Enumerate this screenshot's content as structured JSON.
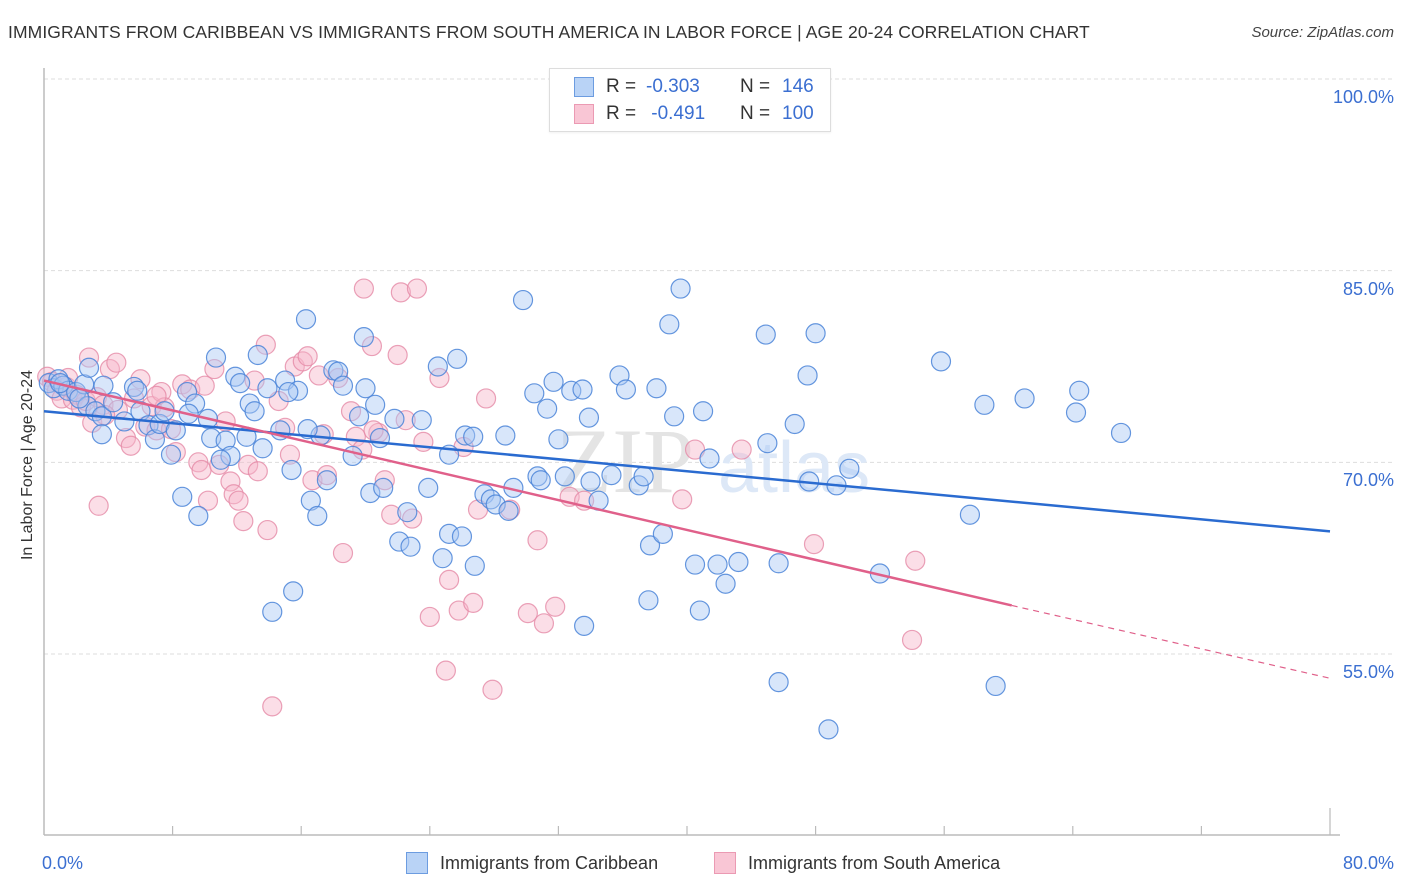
{
  "title": "IMMIGRANTS FROM CARIBBEAN VS IMMIGRANTS FROM SOUTH AMERICA IN LABOR FORCE | AGE 20-24 CORRELATION CHART",
  "source": "Source: ZipAtlas.com",
  "watermark": {
    "zip": "ZIP",
    "atlas": "atlas"
  },
  "legend_top": [
    {
      "r_label": "R =",
      "r_value": "-0.303",
      "n_label": "N =",
      "n_value": "146"
    },
    {
      "r_label": "R =",
      "r_value": " -0.491",
      "n_label": "N =",
      "n_value": "100"
    }
  ],
  "colors": {
    "caribbean_fill": "#a9c8f3",
    "caribbean_stroke": "#4a84d8",
    "caribbean_line": "#2a6bd0",
    "southamerica_fill": "#f7b6c9",
    "southamerica_stroke": "#e58aa6",
    "southamerica_line": "#e0608a",
    "axis_label": "#3b6fd1",
    "grid": "#dddddd"
  },
  "chart_data": {
    "type": "scatter",
    "title": "IMMIGRANTS FROM CARIBBEAN VS IMMIGRANTS FROM SOUTH AMERICA IN LABOR FORCE | AGE 20-24 CORRELATION CHART",
    "xlabel": "",
    "ylabel": "In Labor Force | Age 20-24",
    "xlim": [
      0,
      80
    ],
    "ylim": [
      40.8,
      100
    ],
    "x_tick_labels": [
      "0.0%",
      "80.0%"
    ],
    "x_ticks": [
      0,
      8,
      16,
      24,
      32,
      40,
      48,
      56,
      64,
      72,
      80
    ],
    "y_ticks": [
      100,
      85,
      70,
      55
    ],
    "y_tick_labels": [
      "100.0%",
      "85.0%",
      "70.0%",
      "55.0%"
    ],
    "grid": true,
    "legend_position": "bottom-center",
    "series": [
      {
        "name": "Immigrants from Caribbean",
        "R": -0.303,
        "N": 146,
        "trend": {
          "x": [
            0,
            80
          ],
          "y": [
            74.0,
            64.6
          ]
        },
        "points": [
          [
            0.3,
            76.2
          ],
          [
            0.6,
            75.8
          ],
          [
            0.9,
            76.5
          ],
          [
            1.2,
            76.0
          ],
          [
            1.5,
            75.6
          ],
          [
            2.0,
            75.5
          ],
          [
            2.5,
            76.1
          ],
          [
            2.7,
            74.4
          ],
          [
            2.8,
            77.4
          ],
          [
            3.2,
            74.0
          ],
          [
            3.6,
            73.6
          ],
          [
            3.7,
            76.0
          ],
          [
            3.6,
            72.2
          ],
          [
            4.3,
            74.7
          ],
          [
            5.0,
            73.2
          ],
          [
            5.6,
            75.9
          ],
          [
            6.0,
            74.0
          ],
          [
            6.5,
            72.9
          ],
          [
            6.9,
            71.8
          ],
          [
            7.2,
            73.0
          ],
          [
            7.5,
            74.0
          ],
          [
            7.9,
            70.6
          ],
          [
            8.6,
            67.3
          ],
          [
            8.9,
            75.5
          ],
          [
            9.4,
            74.6
          ],
          [
            9.6,
            65.8
          ],
          [
            10.2,
            73.4
          ],
          [
            10.4,
            71.9
          ],
          [
            10.7,
            78.2
          ],
          [
            11.3,
            71.7
          ],
          [
            11.6,
            70.5
          ],
          [
            11.9,
            76.7
          ],
          [
            12.2,
            76.2
          ],
          [
            12.6,
            72.0
          ],
          [
            12.8,
            74.6
          ],
          [
            13.1,
            74.0
          ],
          [
            13.3,
            78.4
          ],
          [
            13.6,
            71.1
          ],
          [
            13.9,
            75.8
          ],
          [
            14.2,
            58.3
          ],
          [
            14.7,
            72.5
          ],
          [
            15.0,
            76.4
          ],
          [
            15.4,
            69.4
          ],
          [
            15.5,
            59.9
          ],
          [
            15.8,
            75.6
          ],
          [
            16.3,
            81.2
          ],
          [
            16.6,
            67.0
          ],
          [
            17.0,
            65.8
          ],
          [
            17.2,
            72.1
          ],
          [
            17.6,
            68.6
          ],
          [
            18.0,
            77.2
          ],
          [
            18.3,
            77.1
          ],
          [
            18.6,
            76.0
          ],
          [
            19.2,
            70.5
          ],
          [
            19.6,
            73.6
          ],
          [
            19.9,
            79.8
          ],
          [
            20.0,
            75.8
          ],
          [
            20.3,
            67.6
          ],
          [
            20.6,
            74.5
          ],
          [
            20.9,
            71.9
          ],
          [
            21.1,
            68.0
          ],
          [
            21.8,
            73.4
          ],
          [
            22.1,
            63.8
          ],
          [
            22.6,
            66.1
          ],
          [
            22.8,
            63.4
          ],
          [
            23.5,
            73.3
          ],
          [
            23.9,
            68.0
          ],
          [
            24.5,
            77.5
          ],
          [
            24.8,
            62.5
          ],
          [
            25.2,
            64.4
          ],
          [
            25.7,
            78.1
          ],
          [
            26.0,
            64.2
          ],
          [
            26.2,
            72.1
          ],
          [
            26.7,
            72.0
          ],
          [
            26.8,
            61.9
          ],
          [
            27.4,
            67.5
          ],
          [
            27.8,
            67.1
          ],
          [
            28.1,
            66.7
          ],
          [
            28.7,
            72.1
          ],
          [
            28.9,
            66.2
          ],
          [
            29.2,
            68.0
          ],
          [
            29.8,
            82.7
          ],
          [
            30.7,
            68.9
          ],
          [
            30.9,
            68.6
          ],
          [
            30.5,
            75.4
          ],
          [
            31.3,
            74.2
          ],
          [
            31.7,
            76.3
          ],
          [
            32.0,
            71.8
          ],
          [
            32.4,
            68.9
          ],
          [
            32.8,
            75.6
          ],
          [
            33.5,
            75.7
          ],
          [
            33.6,
            57.2
          ],
          [
            33.9,
            73.5
          ],
          [
            34.5,
            67.0
          ],
          [
            35.3,
            69.0
          ],
          [
            35.8,
            76.8
          ],
          [
            36.2,
            75.7
          ],
          [
            37.0,
            68.2
          ],
          [
            37.3,
            68.9
          ],
          [
            37.6,
            59.2
          ],
          [
            37.7,
            63.5
          ],
          [
            38.1,
            75.8
          ],
          [
            38.5,
            64.4
          ],
          [
            38.9,
            80.8
          ],
          [
            39.2,
            73.6
          ],
          [
            39.6,
            83.6
          ],
          [
            40.5,
            62.0
          ],
          [
            40.8,
            58.4
          ],
          [
            41.0,
            74.0
          ],
          [
            41.4,
            70.3
          ],
          [
            41.9,
            62.0
          ],
          [
            42.4,
            60.5
          ],
          [
            43.2,
            62.2
          ],
          [
            44.9,
            80.0
          ],
          [
            45.0,
            71.5
          ],
          [
            45.7,
            52.8
          ],
          [
            45.7,
            62.1
          ],
          [
            46.7,
            73.0
          ],
          [
            47.5,
            76.8
          ],
          [
            47.6,
            68.5
          ],
          [
            48.0,
            80.1
          ],
          [
            48.8,
            49.1
          ],
          [
            49.3,
            68.2
          ],
          [
            50.1,
            69.5
          ],
          [
            52.0,
            61.3
          ],
          [
            55.8,
            77.9
          ],
          [
            57.6,
            65.9
          ],
          [
            58.5,
            74.5
          ],
          [
            59.2,
            52.5
          ],
          [
            61.0,
            75.0
          ],
          [
            64.2,
            73.9
          ],
          [
            64.4,
            75.6
          ],
          [
            67.0,
            72.3
          ],
          [
            1.0,
            76.2
          ],
          [
            2.2,
            75.0
          ],
          [
            5.8,
            75.6
          ],
          [
            8.2,
            72.5
          ],
          [
            11.0,
            70.2
          ],
          [
            16.4,
            72.6
          ],
          [
            25.2,
            70.6
          ],
          [
            34.0,
            68.5
          ],
          [
            15.2,
            75.5
          ],
          [
            9.0,
            73.8
          ]
        ]
      },
      {
        "name": "Immigrants from South America",
        "R": -0.491,
        "N": 100,
        "trend": {
          "x": [
            0,
            60.2
          ],
          "y": [
            76.4,
            58.8
          ],
          "dashed_to": {
            "x": 80,
            "y": 53.1
          }
        },
        "points": [
          [
            0.2,
            76.7
          ],
          [
            0.5,
            76.3
          ],
          [
            0.8,
            75.6
          ],
          [
            1.1,
            75.0
          ],
          [
            1.4,
            75.9
          ],
          [
            1.8,
            74.9
          ],
          [
            2.0,
            75.3
          ],
          [
            2.3,
            74.3
          ],
          [
            2.6,
            74.8
          ],
          [
            2.8,
            78.2
          ],
          [
            3.0,
            73.1
          ],
          [
            3.3,
            75.1
          ],
          [
            3.4,
            66.6
          ],
          [
            3.7,
            74.5
          ],
          [
            4.1,
            77.3
          ],
          [
            4.5,
            77.8
          ],
          [
            4.6,
            74.1
          ],
          [
            5.1,
            71.9
          ],
          [
            5.4,
            71.3
          ],
          [
            5.6,
            75.0
          ],
          [
            6.0,
            76.5
          ],
          [
            6.3,
            72.8
          ],
          [
            6.7,
            74.4
          ],
          [
            7.0,
            72.5
          ],
          [
            7.3,
            75.5
          ],
          [
            7.5,
            74.3
          ],
          [
            7.9,
            72.6
          ],
          [
            8.2,
            70.8
          ],
          [
            8.6,
            76.1
          ],
          [
            9.1,
            75.7
          ],
          [
            9.6,
            70.0
          ],
          [
            9.8,
            69.4
          ],
          [
            10.2,
            67.0
          ],
          [
            10.6,
            77.3
          ],
          [
            10.9,
            69.8
          ],
          [
            11.3,
            73.2
          ],
          [
            11.6,
            68.5
          ],
          [
            11.8,
            67.5
          ],
          [
            12.1,
            67.0
          ],
          [
            12.4,
            65.4
          ],
          [
            12.7,
            69.8
          ],
          [
            13.1,
            76.4
          ],
          [
            13.3,
            69.3
          ],
          [
            13.8,
            79.2
          ],
          [
            13.9,
            64.7
          ],
          [
            14.2,
            50.9
          ],
          [
            14.6,
            74.8
          ],
          [
            15.3,
            70.6
          ],
          [
            15.6,
            77.5
          ],
          [
            16.1,
            77.9
          ],
          [
            16.4,
            78.3
          ],
          [
            16.7,
            68.6
          ],
          [
            17.1,
            76.8
          ],
          [
            17.4,
            72.2
          ],
          [
            17.6,
            69.0
          ],
          [
            18.3,
            76.6
          ],
          [
            18.6,
            62.9
          ],
          [
            19.1,
            74.0
          ],
          [
            19.4,
            72.0
          ],
          [
            19.8,
            71.0
          ],
          [
            19.9,
            83.6
          ],
          [
            20.4,
            79.1
          ],
          [
            20.8,
            72.3
          ],
          [
            21.2,
            68.6
          ],
          [
            21.6,
            65.9
          ],
          [
            22.0,
            78.4
          ],
          [
            22.2,
            83.3
          ],
          [
            22.5,
            73.3
          ],
          [
            22.9,
            65.6
          ],
          [
            23.2,
            83.6
          ],
          [
            23.6,
            71.6
          ],
          [
            24.0,
            57.9
          ],
          [
            24.6,
            76.6
          ],
          [
            25.0,
            53.7
          ],
          [
            25.2,
            60.8
          ],
          [
            25.8,
            58.4
          ],
          [
            26.1,
            71.2
          ],
          [
            26.7,
            59.0
          ],
          [
            27.0,
            66.3
          ],
          [
            27.5,
            75.0
          ],
          [
            27.9,
            52.2
          ],
          [
            29.0,
            66.3
          ],
          [
            30.1,
            58.2
          ],
          [
            30.7,
            63.9
          ],
          [
            31.1,
            57.4
          ],
          [
            31.8,
            58.7
          ],
          [
            32.7,
            67.3
          ],
          [
            33.6,
            67.0
          ],
          [
            39.7,
            67.1
          ],
          [
            40.5,
            71.0
          ],
          [
            43.4,
            71.0
          ],
          [
            47.9,
            63.6
          ],
          [
            54.2,
            62.3
          ],
          [
            54.0,
            56.1
          ],
          [
            1.5,
            76.6
          ],
          [
            3.8,
            73.7
          ],
          [
            7.0,
            75.2
          ],
          [
            15.0,
            72.7
          ],
          [
            20.5,
            72.5
          ],
          [
            10.0,
            76.0
          ]
        ]
      }
    ]
  },
  "bottom_legend": [
    {
      "label": "Immigrants from Caribbean"
    },
    {
      "label": "Immigrants from South America"
    }
  ]
}
